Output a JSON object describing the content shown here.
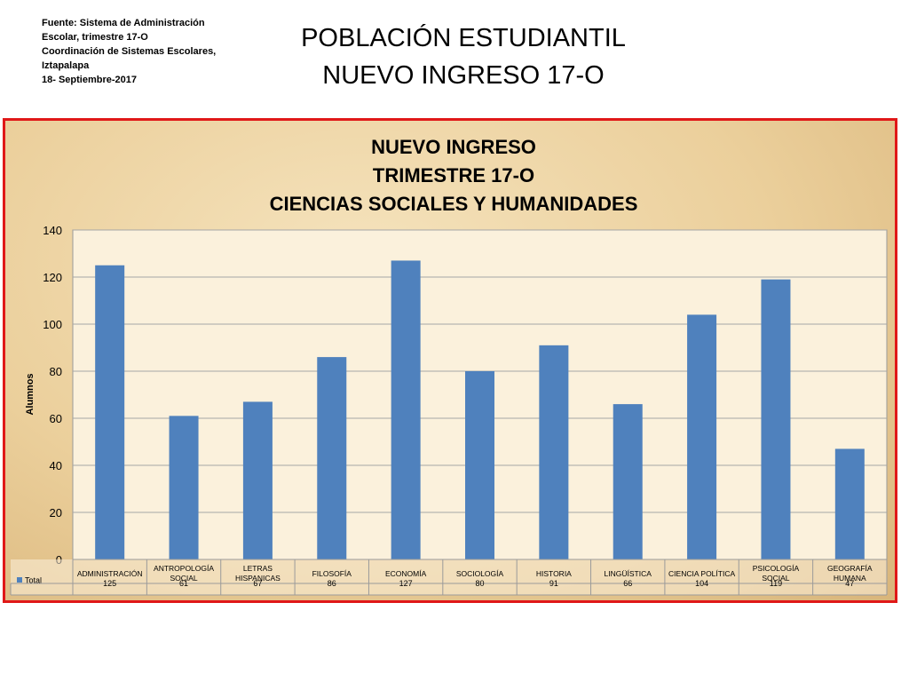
{
  "source_note": {
    "lines": [
      "Fuente: Sistema de Administración",
      "Escolar, trimestre 17-O",
      "Coordinación de Sistemas Escolares,",
      "Iztapalapa",
      "18- Septiembre-2017"
    ]
  },
  "slide_title": {
    "line1": "POBLACIÓN ESTUDIANTIL",
    "line2": "NUEVO INGRESO 17-O"
  },
  "colors": {
    "bar": "#4f81bd",
    "frame_border": "#e01818",
    "plot_bg": "#fbf1dc"
  },
  "chart_data": {
    "type": "bar",
    "title_lines": [
      "NUEVO INGRESO",
      "TRIMESTRE 17-O",
      "CIENCIAS SOCIALES Y HUMANIDADES"
    ],
    "ylabel": "Alumnos",
    "ylim": [
      0,
      140
    ],
    "yticks": [
      0,
      20,
      40,
      60,
      80,
      100,
      120,
      140
    ],
    "grid": true,
    "categories": [
      [
        "ADMINISTRACIÓN"
      ],
      [
        "ANTROPOLOGÍA",
        "SOCIAL"
      ],
      [
        "LETRAS",
        "HISPANICAS"
      ],
      [
        "FILOSOFÍA"
      ],
      [
        "ECONOMÍA"
      ],
      [
        "SOCIOLOGÍA"
      ],
      [
        "HISTORIA"
      ],
      [
        "LINGÜÍSTICA"
      ],
      [
        "CIENCIA POLÍTICA"
      ],
      [
        "PSICOLOGÍA",
        "SOCIAL"
      ],
      [
        "GEOGRAFÍA",
        "HUMANA"
      ]
    ],
    "series": [
      {
        "name": "Total",
        "values": [
          125,
          61,
          67,
          86,
          127,
          80,
          91,
          66,
          104,
          119,
          47
        ]
      }
    ],
    "legend": "data-table"
  }
}
